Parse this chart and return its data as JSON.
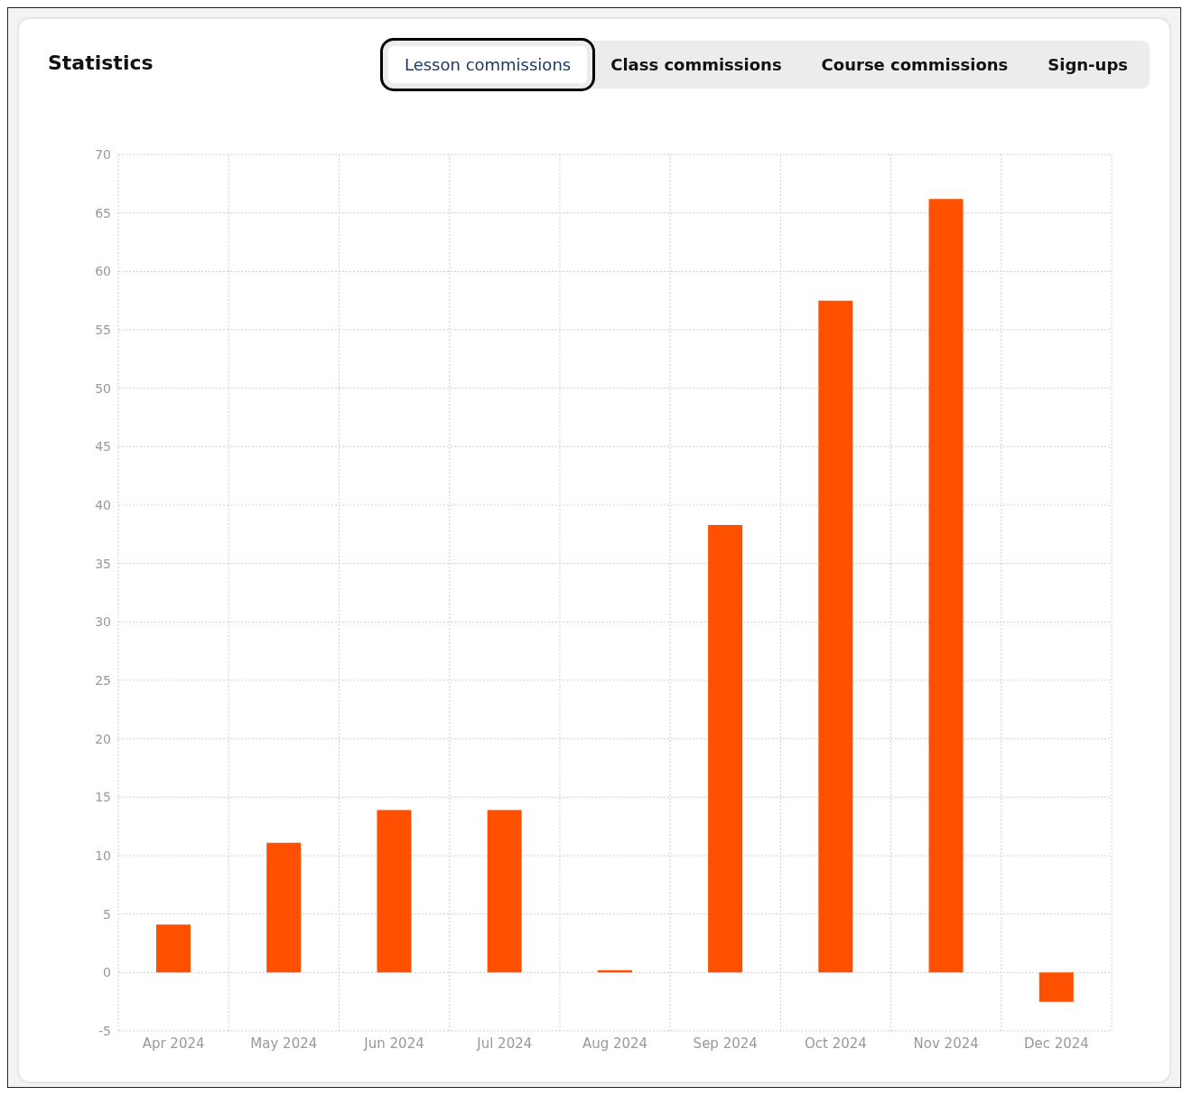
{
  "chart_data": {
    "type": "bar",
    "title": "Statistics",
    "annotations": [
      "Lesson commissions",
      "Class commissions",
      "Course commissions",
      "Sign-ups"
    ],
    "categories": [
      "Apr 2024",
      "May 2024",
      "Jun 2024",
      "Jul 2024",
      "Aug 2024",
      "Sep 2024",
      "Oct 2024",
      "Nov 2024",
      "Dec 2024"
    ],
    "values": [
      4.1,
      11.1,
      13.9,
      13.9,
      0.2,
      38.3,
      57.5,
      66.2,
      -2.5
    ],
    "color": "#ff5000",
    "ylim": [
      -5,
      70
    ],
    "yticks": [
      -5,
      0,
      5,
      10,
      15,
      20,
      25,
      30,
      35,
      40,
      45,
      50,
      55,
      60,
      65,
      70
    ],
    "grid": true
  }
}
